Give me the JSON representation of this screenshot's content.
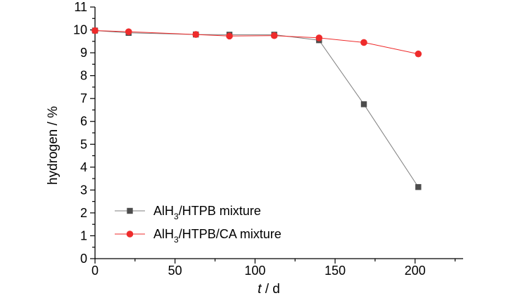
{
  "chart_data": {
    "type": "line",
    "title": "",
    "xlabel_var": "t",
    "xlabel_unit": " / d",
    "ylabel": "hydrogen / %",
    "xlim": [
      0,
      230
    ],
    "ylim": [
      0,
      11
    ],
    "xticks": [
      0,
      50,
      100,
      150,
      200
    ],
    "yticks": [
      0,
      1,
      2,
      3,
      4,
      5,
      6,
      7,
      8,
      9,
      10,
      11
    ],
    "grid": false,
    "legend_position": "bottom-left",
    "series": [
      {
        "name": "AlH3/HTPB mixture",
        "name_parts": [
          "AlH",
          "3",
          "/HTPB mixture"
        ],
        "color": "#4d4d4d",
        "line_color": "#7f7f7f",
        "marker": "square",
        "points": [
          [
            0,
            9.97
          ],
          [
            21,
            9.87
          ],
          [
            63,
            9.8
          ],
          [
            84,
            9.79
          ],
          [
            112,
            9.79
          ],
          [
            140,
            9.55
          ],
          [
            168,
            6.75
          ],
          [
            202,
            3.13
          ]
        ]
      },
      {
        "name": "AlH3/HTPB/CA mixture",
        "name_parts": [
          "AlH",
          "3",
          "/HTPB/CA mixture"
        ],
        "color": "#ee2b2b",
        "line_color": "#ee2b2b",
        "marker": "circle",
        "points": [
          [
            0,
            9.97
          ],
          [
            21,
            9.92
          ],
          [
            63,
            9.8
          ],
          [
            84,
            9.73
          ],
          [
            112,
            9.75
          ],
          [
            140,
            9.65
          ],
          [
            168,
            9.45
          ],
          [
            202,
            8.95
          ]
        ]
      }
    ]
  }
}
